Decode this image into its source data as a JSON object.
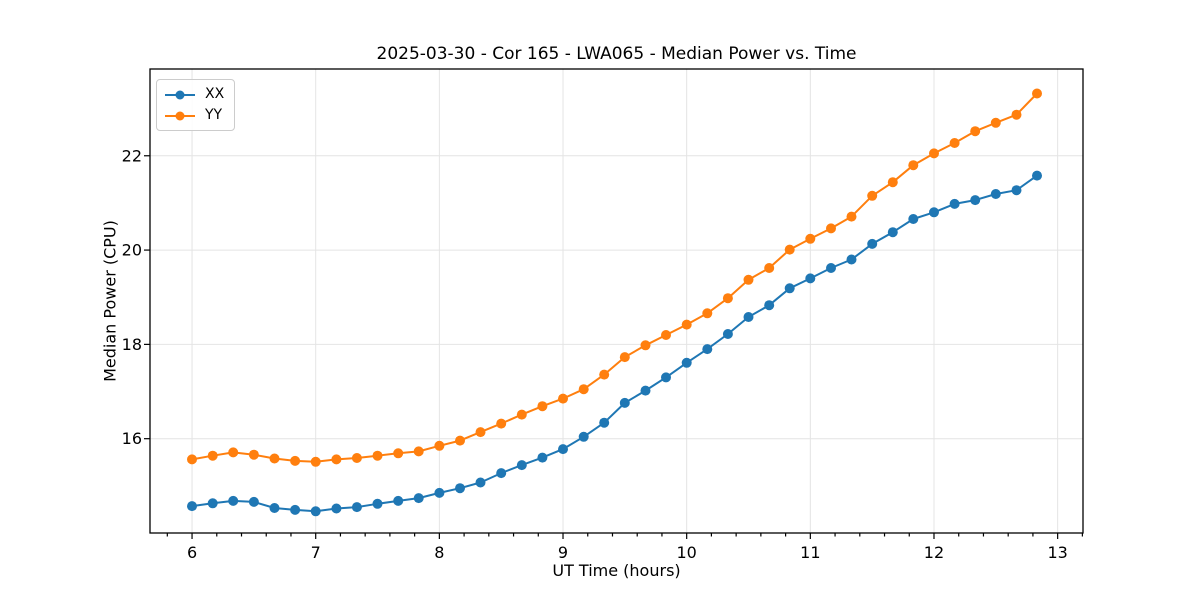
{
  "chart_data": {
    "type": "line",
    "title": "2025-03-30 - Cor 165 - LWA065 - Median Power vs. Time",
    "xlabel": "UT Time (hours)",
    "ylabel": "Median Power (CPU)",
    "xlim": [
      5.66,
      13.205
    ],
    "ylim": [
      14.0,
      23.84
    ],
    "xticks": [
      6,
      7,
      8,
      9,
      10,
      11,
      12,
      13
    ],
    "yticks": [
      16,
      18,
      20,
      22
    ],
    "x_minor_step": 0.2,
    "grid": true,
    "grid_color": "#e4e4e4",
    "legend_position": "upper left",
    "marker": "circle",
    "x": [
      6.0,
      6.167,
      6.333,
      6.5,
      6.667,
      6.833,
      7.0,
      7.167,
      7.333,
      7.5,
      7.667,
      7.833,
      8.0,
      8.167,
      8.333,
      8.5,
      8.667,
      8.833,
      9.0,
      9.167,
      9.333,
      9.5,
      9.667,
      9.833,
      10.0,
      10.167,
      10.333,
      10.5,
      10.667,
      10.833,
      11.0,
      11.167,
      11.333,
      11.5,
      11.667,
      11.833,
      12.0,
      12.167,
      12.333,
      12.5,
      12.667,
      12.833
    ],
    "series": [
      {
        "name": "XX",
        "color": "#1f77b4",
        "values": [
          14.57,
          14.63,
          14.68,
          14.66,
          14.53,
          14.49,
          14.46,
          14.52,
          14.55,
          14.62,
          14.68,
          14.74,
          14.85,
          14.95,
          15.07,
          15.27,
          15.44,
          15.6,
          15.78,
          16.04,
          16.34,
          16.76,
          17.02,
          17.3,
          17.61,
          17.9,
          18.22,
          18.58,
          18.83,
          19.19,
          19.4,
          19.62,
          19.8,
          20.13,
          20.38,
          20.66,
          20.8,
          20.98,
          21.06,
          21.19,
          21.27,
          21.58
        ]
      },
      {
        "name": "YY",
        "color": "#ff7f0e",
        "values": [
          15.56,
          15.64,
          15.71,
          15.66,
          15.58,
          15.53,
          15.51,
          15.56,
          15.59,
          15.64,
          15.69,
          15.73,
          15.85,
          15.96,
          16.14,
          16.32,
          16.51,
          16.69,
          16.85,
          17.05,
          17.36,
          17.73,
          17.98,
          18.2,
          18.42,
          18.66,
          18.98,
          19.37,
          19.62,
          20.01,
          20.24,
          20.46,
          20.71,
          21.15,
          21.44,
          21.8,
          22.05,
          22.27,
          22.52,
          22.7,
          22.87,
          23.32
        ]
      }
    ]
  }
}
